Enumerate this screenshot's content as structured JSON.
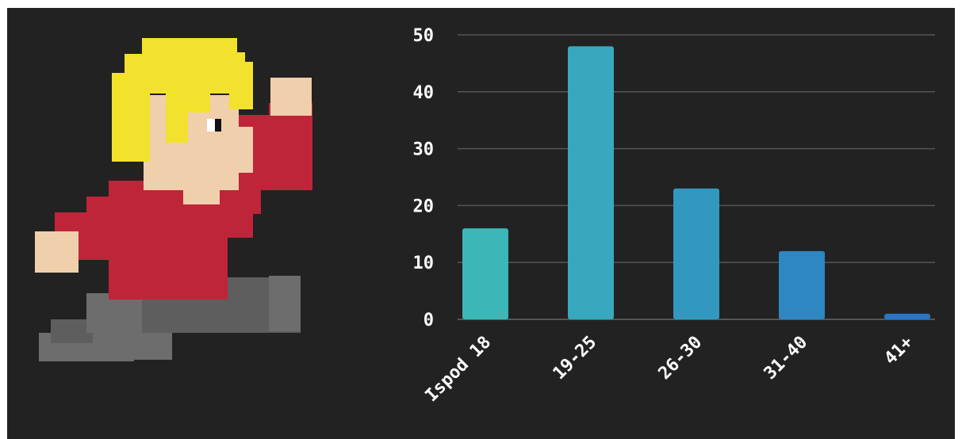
{
  "chart_data": {
    "type": "bar",
    "categories": [
      "Ispod 18",
      "19-25",
      "26-30",
      "31-40",
      "41+"
    ],
    "values": [
      16,
      48,
      23,
      12,
      1
    ],
    "yticks": [
      "0",
      "10",
      "20",
      "30",
      "40",
      "50"
    ],
    "ylim": [
      0,
      50
    ],
    "grid": true,
    "bar_colors": [
      "#3cb6b6",
      "#37a8bd",
      "#3398c0",
      "#2e87c2",
      "#2a75c4"
    ],
    "background": "#222222",
    "grid_color": "#555555"
  },
  "illustration": {
    "icon": "pixel-art-running-boy-icon",
    "colors": {
      "hair": "#f2e22e",
      "skin": "#f0cfad",
      "shirt": "#bf2538",
      "pants": "#5e5e5e",
      "pants_light": "#6d6d6d",
      "eye": "#ffffff",
      "pupil": "#111111"
    }
  }
}
